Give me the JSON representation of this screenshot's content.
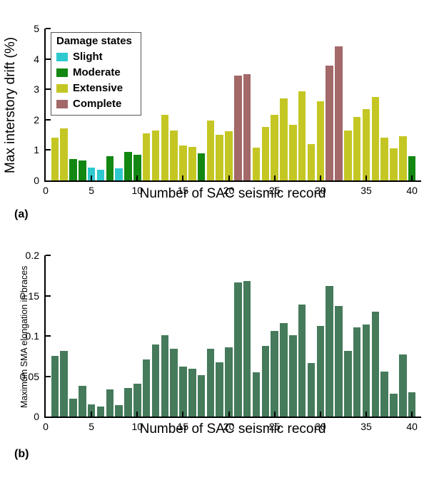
{
  "panels": {
    "a": {
      "label": "(a)"
    },
    "b": {
      "label": "(b)"
    }
  },
  "colors": {
    "slight": "#2EC9CF",
    "moderate": "#128712",
    "extensive": "#C4C723",
    "complete": "#A36868",
    "sma_bar": "#457B5B",
    "axis": "#000000"
  },
  "chart_data": [
    {
      "type": "bar",
      "title": "",
      "xlabel": "Number of SAC seismic record",
      "ylabel": "Max interstory drift (%)",
      "xlim": [
        0,
        41
      ],
      "ylim": [
        0,
        5
      ],
      "xticks": [
        0,
        5,
        10,
        15,
        20,
        25,
        30,
        35,
        40
      ],
      "yticks": [
        0,
        1,
        2,
        3,
        4,
        5
      ],
      "ytick_labels": [
        "0",
        "1",
        "2",
        "3",
        "4",
        "5"
      ],
      "grid": false,
      "legend": {
        "title": "Damage states",
        "position": "upper-left",
        "entries": [
          {
            "label": "Slight",
            "state": "slight",
            "color": "#2EC9CF"
          },
          {
            "label": "Moderate",
            "state": "moderate",
            "color": "#128712"
          },
          {
            "label": "Extensive",
            "state": "extensive",
            "color": "#C4C723"
          },
          {
            "label": "Complete",
            "state": "complete",
            "color": "#A36868"
          }
        ]
      },
      "x": [
        1,
        2,
        3,
        4,
        5,
        6,
        7,
        8,
        9,
        10,
        11,
        12,
        13,
        14,
        15,
        16,
        17,
        18,
        19,
        20,
        21,
        22,
        23,
        24,
        25,
        26,
        27,
        28,
        29,
        30,
        31,
        32,
        33,
        34,
        35,
        36,
        37,
        38,
        39,
        40
      ],
      "values": [
        1.4,
        1.72,
        0.7,
        0.65,
        0.42,
        0.35,
        0.8,
        0.4,
        0.95,
        0.85,
        1.55,
        1.65,
        2.17,
        1.65,
        1.15,
        1.1,
        0.9,
        1.97,
        1.5,
        1.62,
        3.45,
        3.5,
        1.07,
        1.75,
        2.15,
        2.7,
        1.83,
        2.93,
        1.2,
        2.6,
        3.78,
        4.42,
        1.65,
        2.1,
        2.35,
        2.75,
        1.4,
        1.05,
        1.45,
        0.8
      ],
      "states": [
        "extensive",
        "extensive",
        "moderate",
        "moderate",
        "slight",
        "slight",
        "moderate",
        "slight",
        "moderate",
        "moderate",
        "extensive",
        "extensive",
        "extensive",
        "extensive",
        "extensive",
        "extensive",
        "moderate",
        "extensive",
        "extensive",
        "extensive",
        "complete",
        "complete",
        "extensive",
        "extensive",
        "extensive",
        "extensive",
        "extensive",
        "extensive",
        "extensive",
        "extensive",
        "complete",
        "complete",
        "extensive",
        "extensive",
        "extensive",
        "extensive",
        "extensive",
        "extensive",
        "extensive",
        "moderate"
      ]
    },
    {
      "type": "bar",
      "title": "",
      "xlabel": "Number of SAC seismic record",
      "ylabel": "Maximum SMA elongation in braces",
      "xlim": [
        0,
        41
      ],
      "ylim": [
        0,
        0.2
      ],
      "xticks": [
        0,
        5,
        10,
        15,
        20,
        25,
        30,
        35,
        40
      ],
      "yticks": [
        0,
        0.05,
        0.1,
        0.15,
        0.2
      ],
      "ytick_labels": [
        "0",
        "0.05",
        "0.1",
        "0.15",
        "0.2"
      ],
      "grid": false,
      "bar_color": "#457B5B",
      "x": [
        1,
        2,
        3,
        4,
        5,
        6,
        7,
        8,
        9,
        10,
        11,
        12,
        13,
        14,
        15,
        16,
        17,
        18,
        19,
        20,
        21,
        22,
        23,
        24,
        25,
        26,
        27,
        28,
        29,
        30,
        31,
        32,
        33,
        34,
        35,
        36,
        37,
        38,
        39,
        40
      ],
      "values": [
        0.075,
        0.081,
        0.022,
        0.038,
        0.015,
        0.012,
        0.034,
        0.014,
        0.035,
        0.041,
        0.071,
        0.089,
        0.101,
        0.084,
        0.062,
        0.059,
        0.051,
        0.084,
        0.067,
        0.086,
        0.166,
        0.168,
        0.055,
        0.088,
        0.106,
        0.116,
        0.101,
        0.139,
        0.066,
        0.112,
        0.162,
        0.137,
        0.081,
        0.111,
        0.114,
        0.13,
        0.056,
        0.028,
        0.077,
        0.03
      ]
    }
  ]
}
